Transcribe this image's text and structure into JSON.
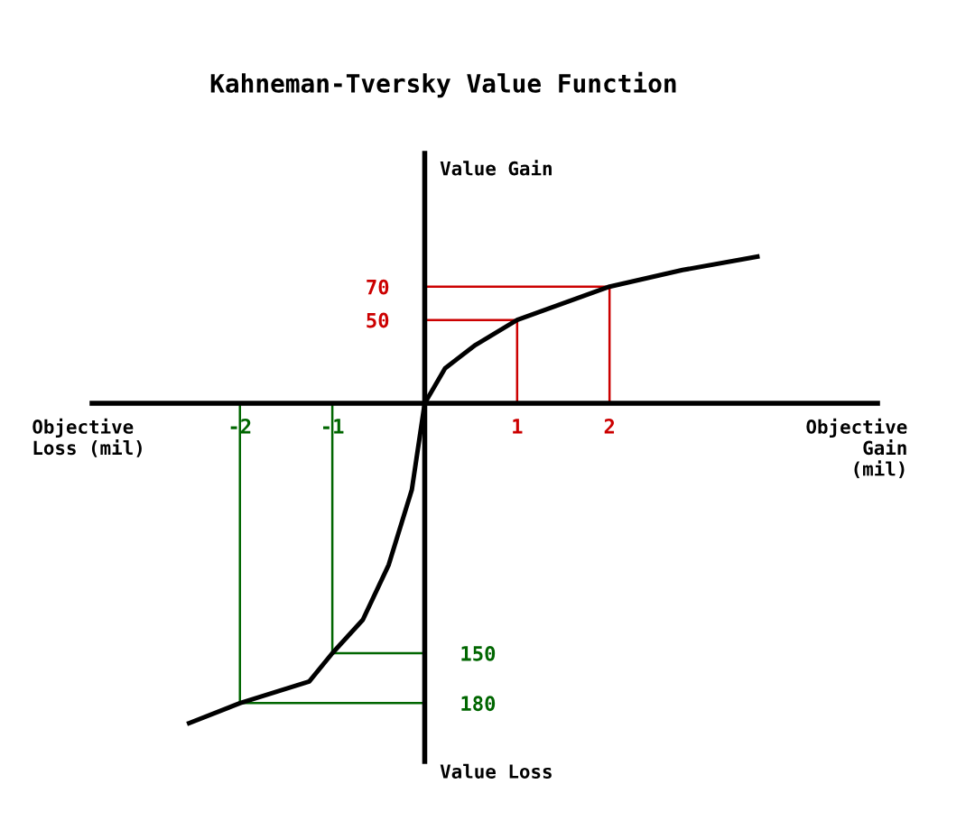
{
  "chart_data": {
    "type": "line",
    "title": "Kahneman-Tversky Value Function",
    "xlabel": "Objective\nGain\n (mil)",
    "annotations": [
      "Objective\nLoss (mil)",
      "Value Gain",
      "Value Loss"
    ],
    "series": [
      {
        "color": "#000000",
        "x": [
          -2.55,
          -2,
          -1.25,
          -1,
          -0.67,
          -0.39,
          -0.14,
          0,
          0.22,
          0.55,
          1,
          2,
          2.79,
          3.6
        ],
        "values": [
          -192,
          -180,
          -167,
          -150,
          -130,
          -97,
          -52,
          0,
          21,
          35,
          50,
          70,
          80,
          88
        ]
      },
      {
        "color": "#cc0000",
        "x": [
          0,
          1,
          1
        ],
        "values": [
          50,
          50,
          0
        ]
      },
      {
        "color": "#cc0000",
        "x": [
          0,
          2,
          2
        ],
        "values": [
          70,
          70,
          0
        ]
      },
      {
        "color": "#006600",
        "x": [
          -1,
          -1,
          0
        ],
        "values": [
          0,
          -150,
          -150
        ]
      },
      {
        "color": "#006600",
        "x": [
          -2,
          -2,
          0
        ],
        "values": [
          0,
          -180,
          -180
        ]
      }
    ],
    "xlim": [
      -3.6,
      4.9
    ],
    "ylim": [
      -215,
      150
    ],
    "xticks": [
      -2,
      -1,
      1,
      2
    ],
    "yticks": [
      50,
      70
    ],
    "y2lim": [
      -215,
      150
    ],
    "y2ticks": [
      {
        "value": -180,
        "label": "180"
      },
      {
        "value": -150,
        "label": "150"
      }
    ],
    "grid": false,
    "marker": "none",
    "line_style": "solid"
  }
}
